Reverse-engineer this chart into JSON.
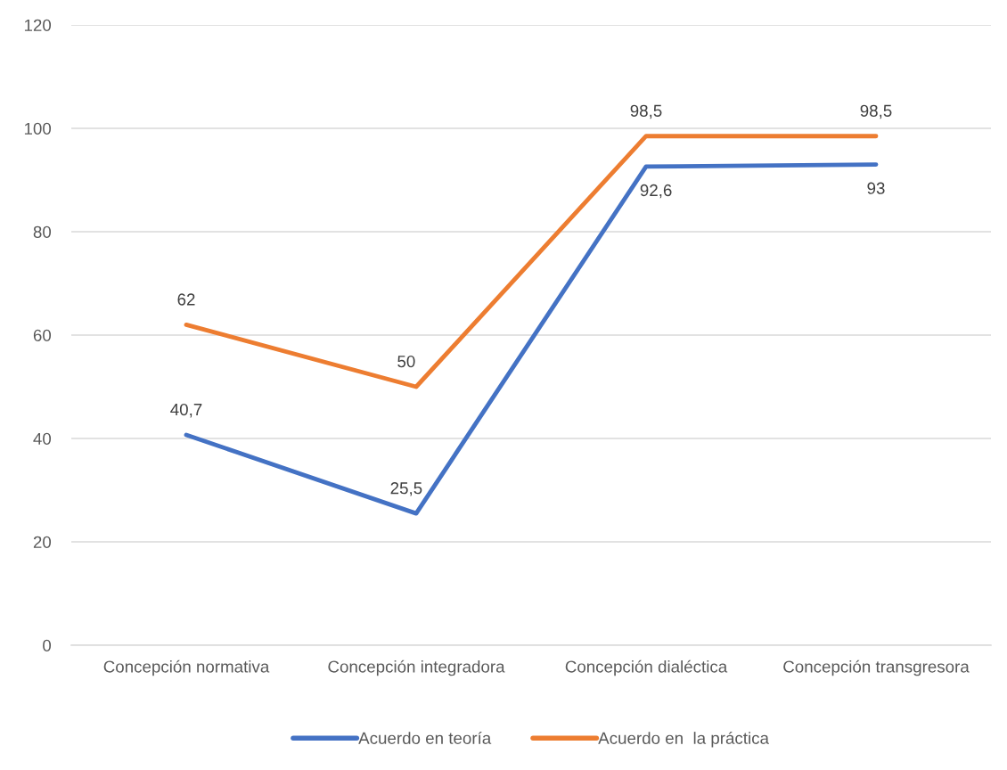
{
  "chart_data": {
    "type": "line",
    "categories": [
      "Concepción normativa",
      "Concepción integradora",
      "Concepción dialéctica",
      "Concepción transgresora"
    ],
    "series": [
      {
        "name": "Acuerdo en teoría",
        "color": "#4472c4",
        "values": [
          40.7,
          25.5,
          92.6,
          93
        ],
        "value_labels": [
          "40,7",
          "25,5",
          "92,6",
          "93"
        ]
      },
      {
        "name": "Acuerdo en  la práctica",
        "color": "#ed7d31",
        "values": [
          62,
          50,
          98.5,
          98.5
        ],
        "value_labels": [
          "62",
          "50",
          "98,5",
          "98,5"
        ]
      }
    ],
    "ylim": [
      0,
      120
    ],
    "yticks": [
      0,
      20,
      40,
      60,
      80,
      100,
      120
    ],
    "grid": "y",
    "legend": "bottom",
    "marker": "none",
    "line_style": "solid"
  }
}
